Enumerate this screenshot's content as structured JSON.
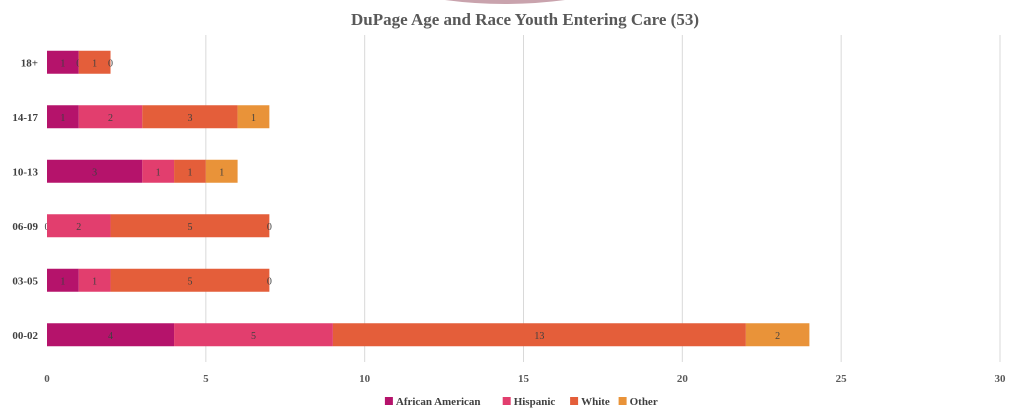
{
  "chart_data": {
    "type": "bar",
    "orientation": "horizontal",
    "stacked": true,
    "title": "DuPage Age and Race Youth Entering Care (53)",
    "categories": [
      "18+",
      "14-17",
      "10-13",
      "06-09",
      "03-05",
      "00-02"
    ],
    "series": [
      {
        "name": "African American",
        "color": "#b5136b",
        "values": [
          1,
          1,
          3,
          0,
          1,
          4
        ]
      },
      {
        "name": "Hispanic",
        "color": "#e23e6e",
        "values": [
          0,
          2,
          1,
          2,
          1,
          5
        ]
      },
      {
        "name": "White",
        "color": "#e45e3a",
        "values": [
          1,
          3,
          1,
          5,
          5,
          13
        ]
      },
      {
        "name": "Other",
        "color": "#e99339",
        "values": [
          0,
          1,
          1,
          0,
          0,
          2
        ]
      }
    ],
    "xlim": [
      0,
      30
    ],
    "xticks": [
      0,
      5,
      10,
      15,
      20,
      25,
      30
    ],
    "grid": true,
    "legend_position": "bottom"
  }
}
